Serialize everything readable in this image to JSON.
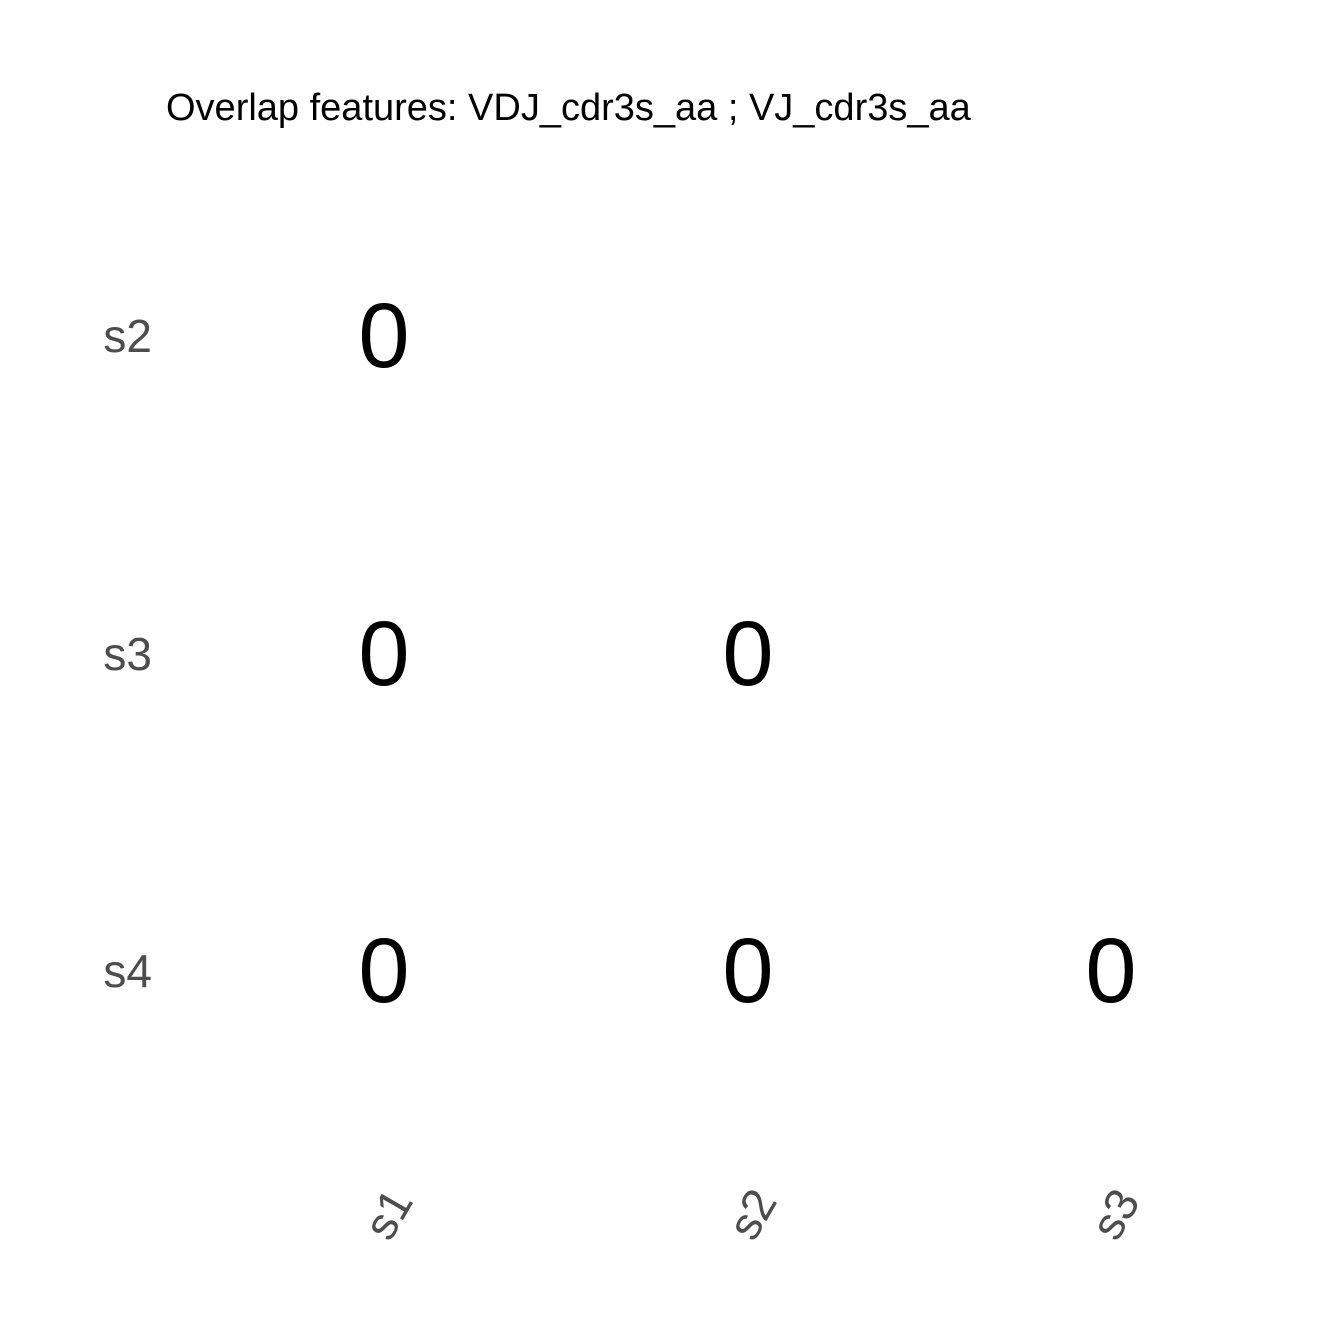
{
  "chart_data": {
    "type": "heatmap",
    "title": "Overlap features: VDJ_cdr3s_aa ; VJ_cdr3s_aa",
    "xlabel": "",
    "ylabel": "",
    "x_categories": [
      "s1",
      "s2",
      "s3"
    ],
    "y_categories": [
      "s2",
      "s3",
      "s4"
    ],
    "cells": [
      {
        "x": "s1",
        "y": "s2",
        "value": 0,
        "label": "0"
      },
      {
        "x": "s1",
        "y": "s3",
        "value": 0,
        "label": "0"
      },
      {
        "x": "s2",
        "y": "s3",
        "value": 0,
        "label": "0"
      },
      {
        "x": "s1",
        "y": "s4",
        "value": 0,
        "label": "0"
      },
      {
        "x": "s2",
        "y": "s4",
        "value": 0,
        "label": "0"
      },
      {
        "x": "s3",
        "y": "s4",
        "value": 0,
        "label": "0"
      }
    ],
    "grid": false,
    "legend": "none",
    "colors": {
      "background": "#ffffff",
      "cell_text": "#000000",
      "tick_text": "#4d4d4d",
      "title_text": "#000000"
    }
  }
}
